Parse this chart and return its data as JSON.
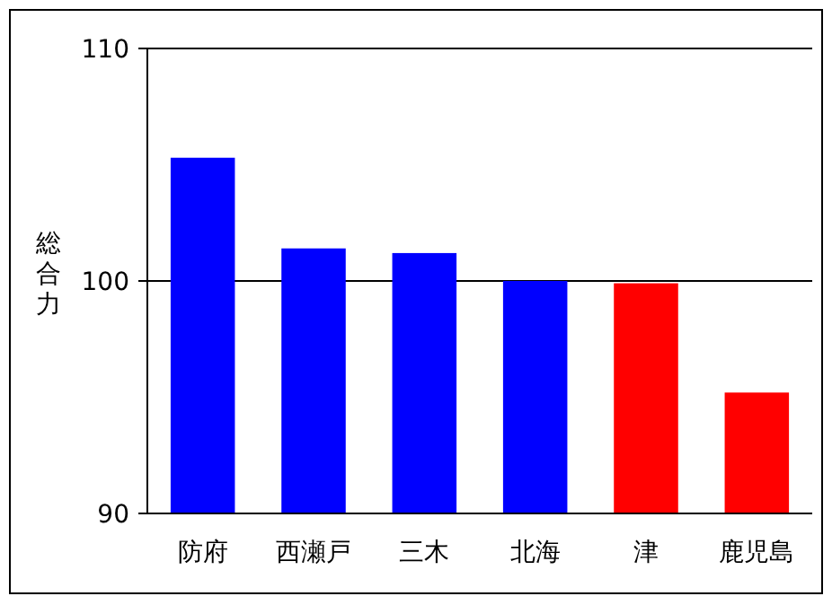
{
  "chart_data": {
    "type": "bar",
    "ylabel": "総合力",
    "categories": [
      "防府",
      "西瀬戸",
      "三木",
      "北海",
      "津",
      "鹿児島"
    ],
    "values": [
      105.3,
      101.4,
      101.2,
      100.0,
      99.9,
      95.2
    ],
    "colors": [
      "#0000ff",
      "#0000ff",
      "#0000ff",
      "#0000ff",
      "#ff0000",
      "#ff0000"
    ],
    "ylim": [
      90,
      110
    ],
    "yticks": [
      90,
      100,
      110
    ],
    "grid": "y"
  }
}
